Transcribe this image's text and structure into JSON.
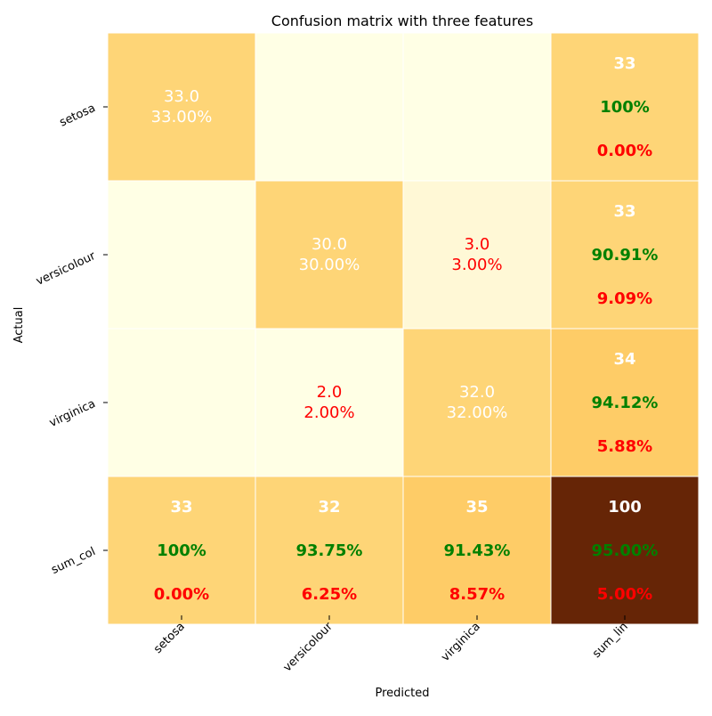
{
  "chart_data": {
    "type": "heatmap",
    "title": "Confusion matrix with three features",
    "xlabel": "Predicted",
    "ylabel": "Actual",
    "x_categories": [
      "setosa",
      "versicolour",
      "virginica",
      "sum_lin"
    ],
    "y_categories": [
      "setosa",
      "versicolour",
      "virginica",
      "sum_col"
    ],
    "colors": {
      "zero": "#ffffe5",
      "low": "#fff8d6",
      "mid": "#fed577",
      "mid2": "#fecc67",
      "max": "#662506",
      "text_light": "#ffffff",
      "text_red": "#ff0000",
      "text_green": "#008000"
    },
    "matrix": [
      [
        33.0,
        0.0,
        0.0
      ],
      [
        0.0,
        30.0,
        3.0
      ],
      [
        0.0,
        2.0,
        32.0
      ]
    ],
    "cells": [
      {
        "row": 0,
        "col": 0,
        "value": "33.0",
        "percent": "33.00%",
        "text_color": "#ffffff"
      },
      {
        "row": 1,
        "col": 1,
        "value": "30.0",
        "percent": "30.00%",
        "text_color": "#ffffff"
      },
      {
        "row": 1,
        "col": 2,
        "value": "3.0",
        "percent": "3.00%",
        "text_color": "#ff0000"
      },
      {
        "row": 2,
        "col": 1,
        "value": "2.0",
        "percent": "2.00%",
        "text_color": "#ff0000"
      },
      {
        "row": 2,
        "col": 2,
        "value": "32.0",
        "percent": "32.00%",
        "text_color": "#ffffff"
      }
    ],
    "row_sums": [
      {
        "total": "33",
        "correct": "100%",
        "error": "0.00%"
      },
      {
        "total": "33",
        "correct": "90.91%",
        "error": "9.09%"
      },
      {
        "total": "34",
        "correct": "94.12%",
        "error": "5.88%"
      }
    ],
    "col_sums": [
      {
        "total": "33",
        "correct": "100%",
        "error": "0.00%"
      },
      {
        "total": "32",
        "correct": "93.75%",
        "error": "6.25%"
      },
      {
        "total": "35",
        "correct": "91.43%",
        "error": "8.57%"
      }
    ],
    "grand_total": {
      "total": "100",
      "correct": "95.00%",
      "error": "5.00%"
    },
    "cell_fills": [
      [
        "mid",
        "zero",
        "zero",
        "mid"
      ],
      [
        "zero",
        "mid",
        "low",
        "mid"
      ],
      [
        "zero",
        "zero",
        "mid",
        "mid2"
      ],
      [
        "mid",
        "mid",
        "mid2",
        "max"
      ]
    ]
  }
}
